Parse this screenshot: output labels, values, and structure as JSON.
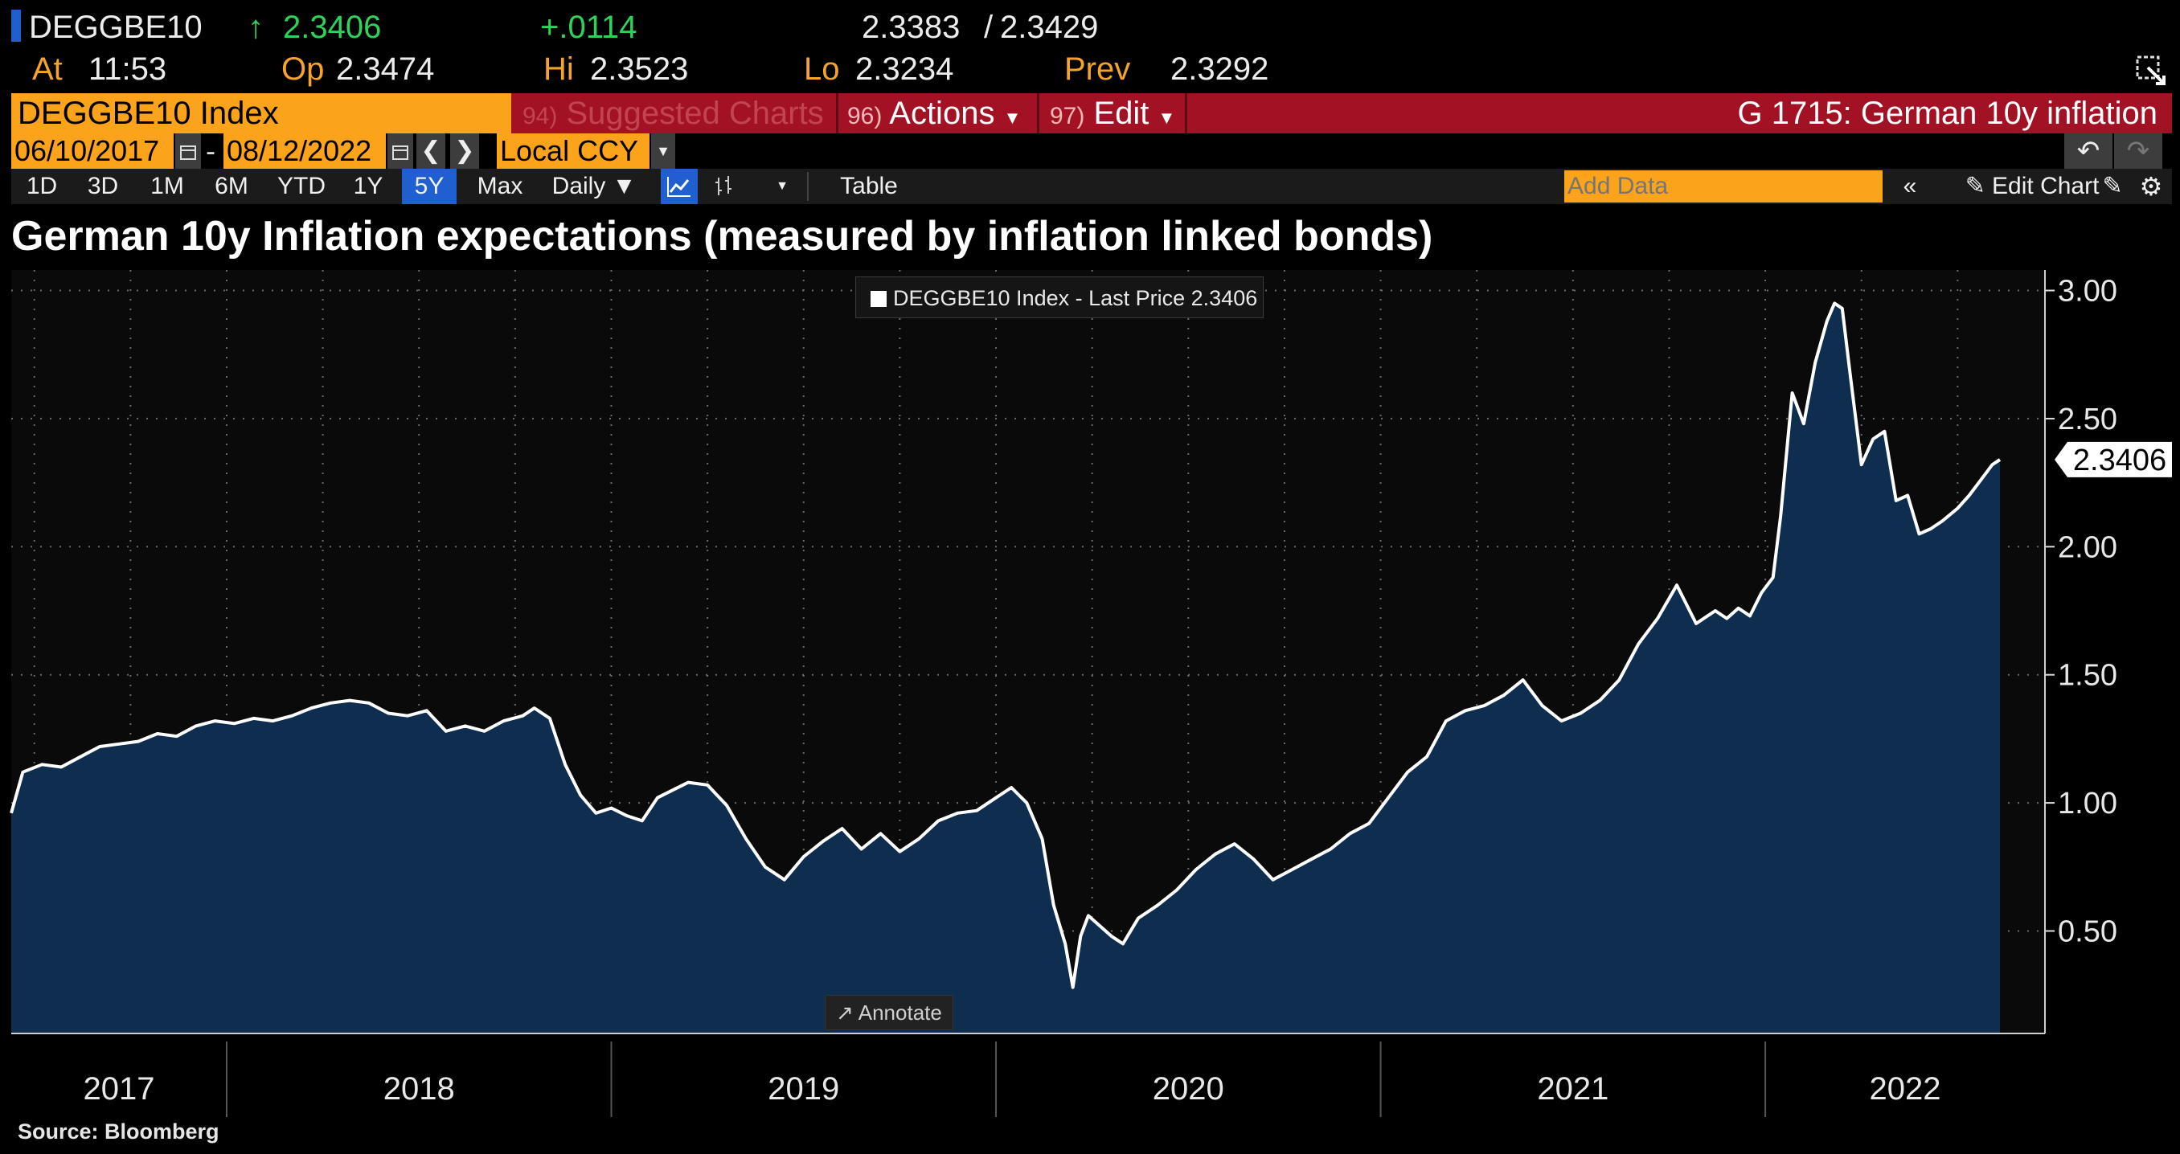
{
  "quote": {
    "ticker": "DEGGBE10",
    "arrow": "↑",
    "last": "2.3406",
    "change": "+.0114",
    "bid": "2.3383",
    "ask_sep": "/",
    "ask": "2.3429",
    "at_label": "At",
    "time": "11:53",
    "open_label": "Op",
    "open": "2.3474",
    "high_label": "Hi",
    "high": "2.3523",
    "low_label": "Lo",
    "low": "2.3234",
    "prev_label": "Prev",
    "prev": "2.3292"
  },
  "command_bar": {
    "security": "DEGGBE10 Index",
    "suggested_num": "94)",
    "suggested_label": "Suggested Charts",
    "actions_num": "96)",
    "actions_label": "Actions",
    "edit_num": "97)",
    "edit_label": "Edit",
    "chart_name": "G 1715: German 10y inflation"
  },
  "date_row": {
    "start_date": "06/10/2017",
    "dash": "-",
    "end_date": "08/12/2022",
    "currency": "Local CCY"
  },
  "toolbar": {
    "periods": [
      "1D",
      "3D",
      "1M",
      "6M",
      "YTD",
      "1Y",
      "5Y",
      "Max"
    ],
    "selected_period": "5Y",
    "frequency": "Daily ▼",
    "table_label": "Table",
    "add_data_placeholder": "Add Data",
    "edit_chart_label": "Edit Chart"
  },
  "icons": {
    "calendar": "calendar-icon",
    "prev": "chevron-left-icon",
    "next": "chevron-right-icon",
    "undo": "undo-icon",
    "redo": "redo-icon",
    "line_chart": "line-chart-icon",
    "bar_chart": "bar-chart-icon",
    "settings": "gear-icon",
    "pencil": "pencil-icon",
    "collapse": "double-chevron-left-icon",
    "popout": "popout-icon"
  },
  "colors": {
    "accent_orange": "#fca31c",
    "command_red": "#a31224",
    "area_fill": "#0e2d4f",
    "line": "#ffffff",
    "up_green": "#2fd35a"
  },
  "chart_data": {
    "type": "area",
    "title": "German 10y Inflation expectations (measured by inflation linked bonds)",
    "legend": "DEGGBE10 Index - Last Price 2.3406",
    "last_value_label": "2.3406",
    "ylim": [
      0.1,
      3.08
    ],
    "yticks": [
      3.0,
      2.5,
      2.0,
      1.5,
      1.0,
      0.5
    ],
    "ytick_labels": [
      "3.00",
      "2.50",
      "2.00",
      "1.50",
      "1.00",
      "0.50"
    ],
    "year_labels": [
      "2017",
      "2018",
      "2019",
      "2020",
      "2021",
      "2022"
    ],
    "x_start": 2017.44,
    "x_end": 2022.61,
    "x": [
      2017.44,
      2017.47,
      2017.52,
      2017.57,
      2017.62,
      2017.67,
      2017.72,
      2017.77,
      2017.82,
      2017.87,
      2017.92,
      2017.97,
      2018.02,
      2018.07,
      2018.12,
      2018.17,
      2018.22,
      2018.27,
      2018.32,
      2018.37,
      2018.42,
      2018.47,
      2018.52,
      2018.57,
      2018.62,
      2018.67,
      2018.72,
      2018.77,
      2018.8,
      2018.84,
      2018.88,
      2018.92,
      2018.96,
      2019.0,
      2019.04,
      2019.08,
      2019.12,
      2019.16,
      2019.2,
      2019.25,
      2019.3,
      2019.35,
      2019.4,
      2019.45,
      2019.5,
      2019.55,
      2019.6,
      2019.65,
      2019.7,
      2019.75,
      2019.8,
      2019.85,
      2019.9,
      2019.95,
      2020.0,
      2020.04,
      2020.08,
      2020.12,
      2020.15,
      2020.18,
      2020.2,
      2020.22,
      2020.24,
      2020.27,
      2020.3,
      2020.33,
      2020.37,
      2020.42,
      2020.47,
      2020.52,
      2020.57,
      2020.62,
      2020.67,
      2020.72,
      2020.77,
      2020.82,
      2020.87,
      2020.92,
      2020.97,
      2021.02,
      2021.07,
      2021.12,
      2021.17,
      2021.22,
      2021.27,
      2021.32,
      2021.37,
      2021.42,
      2021.47,
      2021.52,
      2021.57,
      2021.62,
      2021.67,
      2021.72,
      2021.77,
      2021.82,
      2021.87,
      2021.9,
      2021.93,
      2021.96,
      2021.99,
      2022.02,
      2022.04,
      2022.07,
      2022.1,
      2022.13,
      2022.16,
      2022.18,
      2022.2,
      2022.22,
      2022.25,
      2022.28,
      2022.31,
      2022.34,
      2022.37,
      2022.4,
      2022.43,
      2022.46,
      2022.5,
      2022.53,
      2022.56,
      2022.59,
      2022.61
    ],
    "values": [
      0.96,
      1.12,
      1.15,
      1.14,
      1.18,
      1.22,
      1.23,
      1.24,
      1.27,
      1.26,
      1.3,
      1.32,
      1.31,
      1.33,
      1.32,
      1.34,
      1.37,
      1.39,
      1.4,
      1.39,
      1.35,
      1.34,
      1.36,
      1.28,
      1.3,
      1.28,
      1.32,
      1.34,
      1.37,
      1.33,
      1.15,
      1.03,
      0.96,
      0.98,
      0.95,
      0.93,
      1.02,
      1.05,
      1.08,
      1.07,
      0.99,
      0.86,
      0.75,
      0.7,
      0.79,
      0.85,
      0.9,
      0.82,
      0.88,
      0.81,
      0.86,
      0.93,
      0.96,
      0.97,
      1.02,
      1.06,
      1.0,
      0.86,
      0.6,
      0.45,
      0.28,
      0.48,
      0.56,
      0.52,
      0.48,
      0.45,
      0.55,
      0.6,
      0.66,
      0.74,
      0.8,
      0.84,
      0.78,
      0.7,
      0.74,
      0.78,
      0.82,
      0.88,
      0.92,
      1.02,
      1.12,
      1.18,
      1.32,
      1.36,
      1.38,
      1.42,
      1.48,
      1.38,
      1.32,
      1.35,
      1.4,
      1.48,
      1.62,
      1.72,
      1.85,
      1.7,
      1.75,
      1.72,
      1.76,
      1.73,
      1.82,
      1.88,
      2.12,
      2.6,
      2.48,
      2.72,
      2.88,
      2.95,
      2.93,
      2.68,
      2.32,
      2.42,
      2.45,
      2.18,
      2.2,
      2.05,
      2.07,
      2.1,
      2.15,
      2.2,
      2.26,
      2.32,
      2.34
    ]
  },
  "annotate_label": "Annotate",
  "source": "Source: Bloomberg"
}
